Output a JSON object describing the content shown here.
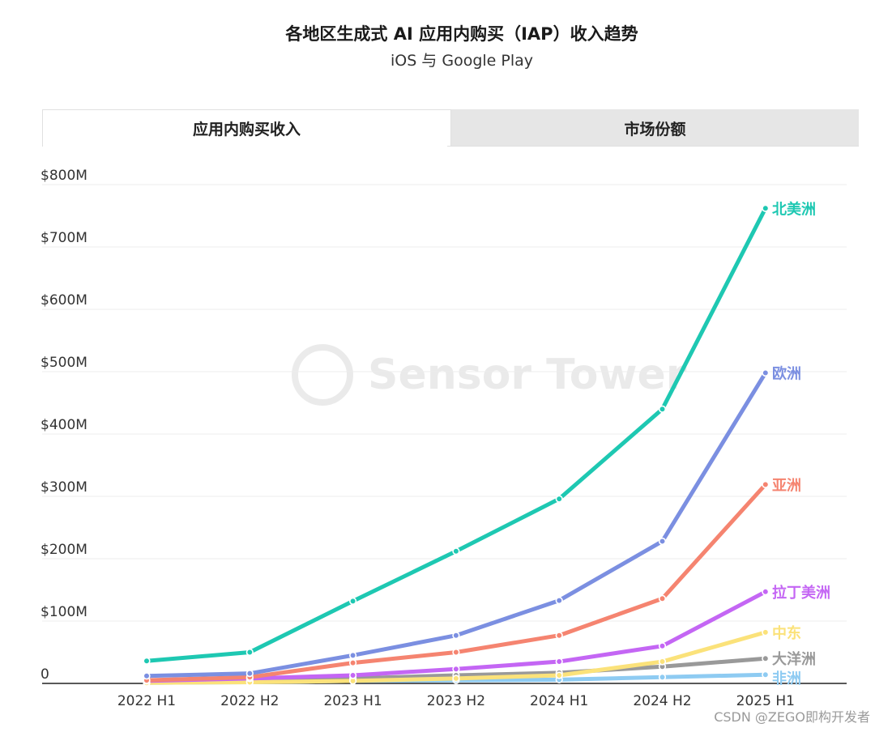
{
  "header": {
    "title": "各地区生成式 AI 应用内购买（IAP）收入趋势",
    "subtitle": "iOS 与 Google Play"
  },
  "tabs": [
    {
      "label": "应用内购买收入",
      "active": true
    },
    {
      "label": "市场份额",
      "active": false
    }
  ],
  "watermark": {
    "text": "Sensor Tower"
  },
  "footer": {
    "credit": "CSDN @ZEGO即构开发者"
  },
  "chart_data": {
    "type": "line",
    "categories": [
      "2022 H1",
      "2022 H2",
      "2023 H1",
      "2023 H2",
      "2024 H1",
      "2024 H2",
      "2025 H1"
    ],
    "ylim": [
      0,
      800
    ],
    "yticks": [
      0,
      100,
      200,
      300,
      400,
      500,
      600,
      700,
      800
    ],
    "ytick_labels": [
      "0",
      "$100M",
      "$200M",
      "$300M",
      "$400M",
      "$500M",
      "$600M",
      "$700M",
      "$800M"
    ],
    "grid": true,
    "legend": "labels at line ends (right)",
    "series": [
      {
        "name": "非洲",
        "color": "#8ecbf2",
        "values": [
          1,
          2,
          4,
          5,
          6,
          10,
          14
        ]
      },
      {
        "name": "大洋洲",
        "color": "#999999",
        "values": [
          2,
          4,
          8,
          13,
          17,
          27,
          40
        ]
      },
      {
        "name": "中东",
        "color": "#fbe27a",
        "values": [
          1,
          2,
          4,
          8,
          13,
          35,
          82
        ]
      },
      {
        "name": "拉丁美洲",
        "color": "#c466f4",
        "values": [
          4,
          8,
          13,
          23,
          35,
          60,
          147
        ]
      },
      {
        "name": "亚洲",
        "color": "#f58470",
        "values": [
          5,
          10,
          33,
          50,
          77,
          136,
          319
        ]
      },
      {
        "name": "欧洲",
        "color": "#7b8fe1",
        "values": [
          12,
          16,
          45,
          77,
          133,
          228,
          498
        ]
      },
      {
        "name": "北美洲",
        "color": "#1ec8b2",
        "values": [
          36,
          50,
          132,
          212,
          296,
          440,
          762
        ]
      }
    ]
  }
}
